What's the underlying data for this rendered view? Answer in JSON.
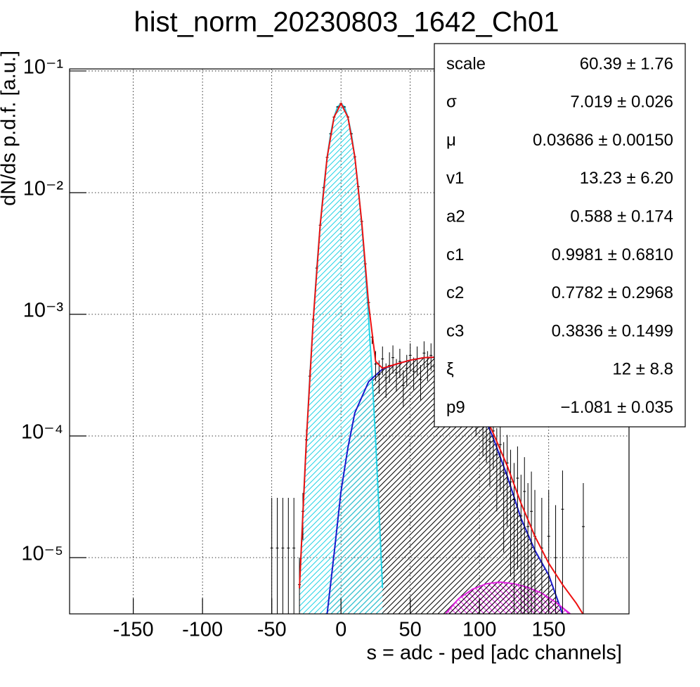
{
  "chart_data": {
    "type": "line",
    "title": "hist_norm_20230803_1642_Ch01",
    "x_label": "s = adc - ped [adc channels]",
    "y_label": "dN/ds p.d.f. [a.u.]",
    "log_y": true,
    "grid": true,
    "xlim": [
      -196,
      208
    ],
    "ylim": [
      3.45e-06,
      0.104
    ],
    "xticks": [
      -150,
      -100,
      -50,
      0,
      50,
      100,
      150
    ],
    "yticks": [
      {
        "value": 1e-05,
        "label": "10⁻⁵"
      },
      {
        "value": 0.0001,
        "label": "10⁻⁴"
      },
      {
        "value": 0.001,
        "label": "10⁻³"
      },
      {
        "value": 0.01,
        "label": "10⁻²"
      },
      {
        "value": 0.1,
        "label": "10⁻¹"
      }
    ],
    "series": [
      {
        "style": "curve",
        "color": "#22d3e6",
        "hatch": "diagonal",
        "hatch_color": "#22d3e6",
        "x": [
          -30,
          -27.5,
          -25,
          -22.5,
          -20,
          -17.5,
          -15,
          -12.5,
          -10,
          -7.5,
          -5,
          -2.5,
          0,
          2.5,
          5,
          7.5,
          10,
          12.5,
          15,
          17.5,
          20,
          22.5,
          25,
          27.5,
          30
        ],
        "values": [
          5.6e-06,
          2.4e-05,
          9.2e-05,
          0.000309,
          0.00091,
          0.00237,
          0.00544,
          0.01097,
          0.0195,
          0.0304,
          0.0418,
          0.0507,
          0.054,
          0.0507,
          0.0418,
          0.0304,
          0.0195,
          0.01097,
          0.00544,
          0.00237,
          0.00091,
          0.000309,
          9.2e-05,
          2.4e-05,
          5.6e-06
        ]
      },
      {
        "style": "curve",
        "color": "#1a1acc",
        "hatch": "diagonal",
        "hatch_color": "#000000",
        "x": [
          -12,
          -10,
          -5,
          0,
          5,
          10,
          20,
          30,
          40,
          50,
          60,
          70,
          80,
          90,
          100,
          110,
          120,
          130,
          140,
          150,
          160,
          165
        ],
        "values": [
          2.5e-06,
          3.45e-06,
          1.07e-05,
          3.5e-05,
          8e-05,
          0.000155,
          0.00028,
          0.000355,
          0.00039,
          0.00042,
          0.00044,
          0.000445,
          0.00039,
          0.00028,
          0.000176,
          9.6e-05,
          4.7e-05,
          2.1e-05,
          1.15e-05,
          7.2e-06,
          3.45e-06,
          2.4e-06
        ]
      },
      {
        "style": "curve",
        "color": "#e020e0",
        "hatch": "cross",
        "hatch_color": "#e020e0",
        "x": [
          70,
          75,
          85,
          95,
          105,
          115,
          125,
          135,
          145,
          155,
          165,
          170
        ],
        "values": [
          2.6e-06,
          3.4e-06,
          4.6e-06,
          5.5e-06,
          6.1e-06,
          6.3e-06,
          6.1e-06,
          5.7e-06,
          5.1e-06,
          4.3e-06,
          3.5e-06,
          3e-06
        ]
      },
      {
        "style": "points",
        "color": "#000000",
        "x": [
          -50,
          -46,
          -42,
          -38,
          -34,
          -30,
          -27.5,
          -25,
          -22.5,
          -20,
          -17.5,
          -15,
          -12.5,
          -10,
          -7.5,
          -5,
          -2.5,
          0,
          2.5,
          5,
          7.5,
          10,
          12.5,
          15,
          17.5,
          20,
          22.5,
          25,
          27.5,
          30,
          32.5,
          35,
          37.5,
          40,
          42.5,
          45,
          47.5,
          50,
          52.5,
          55,
          57.5,
          60,
          62.5,
          65,
          67.5,
          70,
          72.5,
          75,
          77.5,
          80,
          82.5,
          85,
          87.5,
          90,
          92.5,
          95,
          97.5,
          100,
          102.5,
          105,
          107.5,
          110,
          112.5,
          115,
          117.5,
          120,
          122.5,
          125,
          127.5,
          130,
          132.5,
          135,
          137.5,
          140,
          145,
          150,
          155,
          160,
          175
        ],
        "values": [
          1.2e-05,
          1.2e-05,
          1.2e-05,
          1.2e-05,
          1.2e-05,
          6e-06,
          2.4e-05,
          9.3e-05,
          0.00031,
          0.00091,
          0.0024,
          0.0054,
          0.011,
          0.0195,
          0.0305,
          0.0418,
          0.0507,
          0.054,
          0.0507,
          0.0419,
          0.0305,
          0.0197,
          0.0112,
          0.0058,
          0.0026,
          0.00125,
          0.00065,
          0.00039,
          0.00032,
          0.00043,
          0.0003,
          0.00038,
          0.00044,
          0.00033,
          0.00041,
          0.00026,
          0.00036,
          0.00046,
          0.00034,
          0.00043,
          0.00029,
          0.00048,
          0.00039,
          0.00046,
          0.00037,
          0.00042,
          0.00051,
          0.0004,
          0.00036,
          0.00043,
          0.00033,
          0.0003,
          0.00035,
          0.00026,
          0.00023,
          0.00025,
          0.00017,
          0.00021,
          0.00013,
          0.00012,
          9e-05,
          0.00011,
          7e-05,
          8.5e-05,
          5e-05,
          6e-05,
          4.2e-05,
          3e-05,
          4.5e-05,
          2.2e-05,
          3.5e-05,
          1.8e-05,
          2.4e-05,
          1.5e-05,
          1.2e-05,
          1.5e-05,
          1e-05,
          2.5e-05,
          1.8e-05
        ],
        "errors": [
          1.9e-05,
          1.9e-05,
          1.9e-05,
          1.9e-05,
          1.9e-05,
          4e-06,
          1e-05,
          2e-05,
          4e-05,
          6e-05,
          0.0001,
          0.00015,
          0.0002,
          0.0003,
          0.0004,
          0.0004,
          0.0005,
          0.0005,
          0.0005,
          0.0004,
          0.0004,
          0.0003,
          0.0002,
          0.00015,
          0.0001,
          8e-05,
          8e-05,
          0.000108,
          9.8e-05,
          0.000114,
          9.5e-05,
          0.000107,
          0.000115,
          9.9e-05,
          0.000111,
          8.8e-05,
          0.000104,
          0.000117,
          0.000101,
          0.000114,
          9.3e-05,
          0.00012,
          0.000108,
          0.000117,
          0.000105,
          0.000112,
          0.000124,
          0.00011,
          0.000104,
          0.000114,
          9.9e-05,
          9.5e-05,
          0.000102,
          8.8e-05,
          8.3e-05,
          8.7e-05,
          7.1e-05,
          7.9e-05,
          6.2e-05,
          6e-05,
          5.2e-05,
          5.7e-05,
          4.6e-05,
          5e-05,
          3.9e-05,
          4.2e-05,
          3.5e-05,
          3e-05,
          3.7e-05,
          2.6e-05,
          3.2e-05,
          2.3e-05,
          2.7e-05,
          2.1e-05,
          1.9e-05,
          2.1e-05,
          1.7e-05,
          2.7e-05,
          2.3e-05
        ]
      },
      {
        "style": "curve",
        "color": "#ee1111",
        "x": [
          -30,
          -25,
          -20,
          -15,
          -10,
          -5,
          0,
          5,
          10,
          15,
          20,
          25,
          30,
          40,
          50,
          60,
          70,
          80,
          90,
          100,
          110,
          120,
          130,
          140,
          150,
          160,
          170,
          175
        ],
        "values": [
          5.6e-06,
          9.2e-05,
          0.00091,
          0.00544,
          0.0195,
          0.0418,
          0.054,
          0.0418,
          0.0197,
          0.0057,
          0.00119,
          0.00041,
          0.00036,
          0.00039,
          0.00042,
          0.00044,
          0.000445,
          0.000395,
          0.00029,
          0.000185,
          0.000105,
          5.7e-05,
          2.8e-05,
          1.5e-05,
          9e-06,
          6e-06,
          4.2e-06,
          3.4e-06
        ]
      }
    ],
    "stats": [
      {
        "name": "scale",
        "value": "60.39 ± 1.76"
      },
      {
        "name": "σ",
        "value": "7.019 ± 0.026"
      },
      {
        "name": "μ",
        "value": "0.03686 ± 0.00150"
      },
      {
        "name": "v1",
        "value": "13.23 ± 6.20"
      },
      {
        "name": "a2",
        "value": "0.588 ± 0.174"
      },
      {
        "name": "c1",
        "value": "0.9981 ± 0.6810"
      },
      {
        "name": "c2",
        "value": "0.7782 ± 0.2968"
      },
      {
        "name": "c3",
        "value": "0.3836 ± 0.1499"
      },
      {
        "name": "ξ",
        "value": "12 ± 8.8"
      },
      {
        "name": "p9",
        "value": "−1.081 ± 0.035"
      }
    ]
  }
}
